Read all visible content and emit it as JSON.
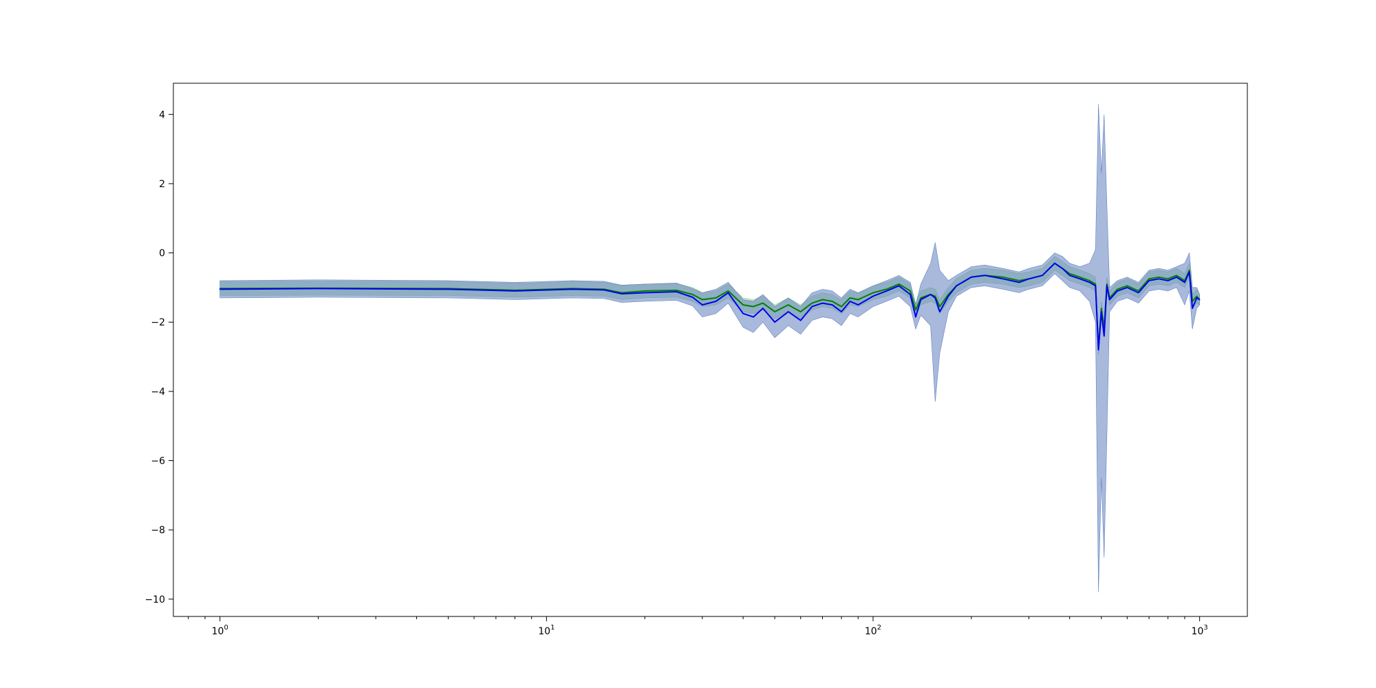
{
  "chart_data": {
    "type": "line",
    "title": "",
    "xlabel": "",
    "ylabel": "",
    "xscale": "log",
    "xlim": [
      0.72,
      1400
    ],
    "ylim": [
      -10.5,
      4.9
    ],
    "grid": false,
    "legend": "none",
    "x_ticks": [
      {
        "value": 1,
        "base": "10",
        "exp": "0"
      },
      {
        "value": 10,
        "base": "10",
        "exp": "1"
      },
      {
        "value": 100,
        "base": "10",
        "exp": "2"
      },
      {
        "value": 1000,
        "base": "10",
        "exp": "3"
      }
    ],
    "y_ticks": [
      {
        "value": 4,
        "label": "4"
      },
      {
        "value": 2,
        "label": "2"
      },
      {
        "value": 0,
        "label": "0"
      },
      {
        "value": -2,
        "label": "−2"
      },
      {
        "value": -4,
        "label": "−4"
      },
      {
        "value": -6,
        "label": "−6"
      },
      {
        "value": -8,
        "label": "−8"
      },
      {
        "value": -10,
        "label": "−10"
      }
    ],
    "x": [
      1,
      2,
      5,
      8,
      12,
      15,
      17,
      20,
      25,
      28,
      30,
      33,
      36,
      40,
      43,
      46,
      50,
      55,
      60,
      65,
      70,
      75,
      80,
      85,
      90,
      100,
      110,
      120,
      130,
      135,
      140,
      150,
      155,
      160,
      170,
      180,
      200,
      220,
      250,
      280,
      300,
      330,
      360,
      380,
      400,
      430,
      460,
      480,
      490,
      500,
      510,
      520,
      530,
      560,
      600,
      650,
      700,
      750,
      800,
      850,
      900,
      930,
      950,
      980,
      1000
    ],
    "series": [
      {
        "color": "#008000",
        "band_color": "#90d090",
        "values": [
          -1.03,
          -1.02,
          -1.03,
          -1.08,
          -1.03,
          -1.05,
          -1.15,
          -1.1,
          -1.08,
          -1.2,
          -1.35,
          -1.3,
          -1.1,
          -1.5,
          -1.55,
          -1.45,
          -1.7,
          -1.5,
          -1.7,
          -1.45,
          -1.35,
          -1.4,
          -1.55,
          -1.3,
          -1.35,
          -1.15,
          -1.05,
          -0.9,
          -1.1,
          -1.65,
          -1.3,
          -1.2,
          -1.25,
          -1.55,
          -1.2,
          -0.95,
          -0.7,
          -0.65,
          -0.7,
          -0.8,
          -0.75,
          -0.65,
          -0.3,
          -0.45,
          -0.6,
          -0.7,
          -0.8,
          -0.9,
          -2.75,
          -1.6,
          -2.2,
          -0.9,
          -1.3,
          -1.05,
          -0.95,
          -1.1,
          -0.75,
          -0.7,
          -0.75,
          -0.65,
          -0.8,
          -0.5,
          -1.4,
          -1.25,
          -1.35
        ],
        "lower": [
          -1.23,
          -1.22,
          -1.23,
          -1.28,
          -1.23,
          -1.25,
          -1.35,
          -1.3,
          -1.28,
          -1.4,
          -1.55,
          -1.5,
          -1.3,
          -1.7,
          -1.75,
          -1.65,
          -1.9,
          -1.7,
          -1.9,
          -1.65,
          -1.55,
          -1.6,
          -1.75,
          -1.5,
          -1.55,
          -1.35,
          -1.25,
          -1.1,
          -1.3,
          -1.85,
          -1.5,
          -1.4,
          -1.45,
          -1.75,
          -1.4,
          -1.15,
          -0.9,
          -0.85,
          -0.9,
          -1.0,
          -0.95,
          -0.85,
          -0.5,
          -0.65,
          -0.8,
          -0.9,
          -1.0,
          -1.1,
          -2.95,
          -1.8,
          -2.4,
          -1.1,
          -1.5,
          -1.25,
          -1.15,
          -1.3,
          -0.95,
          -0.9,
          -0.95,
          -0.85,
          -1.0,
          -0.7,
          -1.6,
          -1.45,
          -1.5
        ],
        "upper": [
          -0.83,
          -0.82,
          -0.83,
          -0.88,
          -0.83,
          -0.85,
          -0.95,
          -0.9,
          -0.88,
          -1.0,
          -1.15,
          -1.1,
          -0.9,
          -1.3,
          -1.35,
          -1.25,
          -1.5,
          -1.3,
          -1.5,
          -1.25,
          -1.15,
          -1.2,
          -1.35,
          -1.1,
          -1.15,
          -0.95,
          -0.85,
          -0.7,
          -0.9,
          -1.45,
          -1.1,
          -1.0,
          -1.05,
          -1.35,
          -1.0,
          -0.75,
          -0.5,
          -0.45,
          -0.5,
          -0.6,
          -0.55,
          -0.45,
          -0.1,
          -0.25,
          -0.4,
          -0.5,
          -0.6,
          -0.7,
          -2.55,
          -1.4,
          -2.0,
          -0.7,
          -1.1,
          -0.85,
          -0.75,
          -0.9,
          -0.55,
          -0.5,
          -0.55,
          -0.45,
          -0.6,
          -0.3,
          -1.2,
          -1.05,
          -1.2
        ]
      },
      {
        "color": "#0000ee",
        "band_color": "#6080c0",
        "values": [
          -1.05,
          -1.03,
          -1.05,
          -1.1,
          -1.05,
          -1.07,
          -1.18,
          -1.15,
          -1.12,
          -1.28,
          -1.5,
          -1.4,
          -1.15,
          -1.75,
          -1.85,
          -1.6,
          -2.0,
          -1.7,
          -1.95,
          -1.55,
          -1.45,
          -1.5,
          -1.7,
          -1.4,
          -1.5,
          -1.25,
          -1.1,
          -0.95,
          -1.2,
          -1.85,
          -1.35,
          -1.2,
          -1.3,
          -1.7,
          -1.25,
          -0.95,
          -0.7,
          -0.65,
          -0.75,
          -0.85,
          -0.75,
          -0.65,
          -0.3,
          -0.45,
          -0.65,
          -0.75,
          -0.85,
          -0.95,
          -2.8,
          -1.7,
          -2.4,
          -0.95,
          -1.35,
          -1.1,
          -1.0,
          -1.15,
          -0.8,
          -0.75,
          -0.8,
          -0.7,
          -0.85,
          -0.55,
          -1.6,
          -1.3,
          -1.35
        ],
        "lower": [
          -1.3,
          -1.28,
          -1.3,
          -1.35,
          -1.3,
          -1.32,
          -1.43,
          -1.4,
          -1.37,
          -1.53,
          -1.85,
          -1.75,
          -1.45,
          -2.15,
          -2.3,
          -2.0,
          -2.45,
          -2.1,
          -2.35,
          -1.95,
          -1.85,
          -1.9,
          -2.1,
          -1.75,
          -1.85,
          -1.55,
          -1.4,
          -1.25,
          -1.55,
          -2.2,
          -1.8,
          -2.1,
          -4.3,
          -2.9,
          -1.7,
          -1.25,
          -1.0,
          -0.95,
          -1.05,
          -1.15,
          -1.05,
          -0.95,
          -0.6,
          -0.8,
          -1.0,
          -1.1,
          -1.4,
          -2.0,
          -9.8,
          -6.5,
          -8.8,
          -5.3,
          -1.7,
          -1.4,
          -1.3,
          -1.45,
          -1.1,
          -1.05,
          -1.1,
          -1.0,
          -1.5,
          -1.1,
          -2.2,
          -1.6,
          -1.5
        ],
        "upper": [
          -0.8,
          -0.78,
          -0.8,
          -0.85,
          -0.8,
          -0.82,
          -0.93,
          -0.9,
          -0.87,
          -1.03,
          -1.15,
          -1.05,
          -0.85,
          -1.35,
          -1.4,
          -1.2,
          -1.55,
          -1.3,
          -1.55,
          -1.15,
          -1.05,
          -1.1,
          -1.3,
          -1.05,
          -1.15,
          -0.95,
          -0.8,
          -0.65,
          -0.85,
          -1.5,
          -0.9,
          -0.3,
          0.3,
          -0.5,
          -0.8,
          -0.65,
          -0.4,
          -0.35,
          -0.45,
          -0.55,
          -0.45,
          -0.35,
          0.0,
          -0.1,
          -0.3,
          -0.4,
          -0.3,
          0.1,
          4.3,
          2.3,
          4.0,
          1.4,
          -1.0,
          -0.8,
          -0.7,
          -0.85,
          -0.5,
          -0.45,
          -0.5,
          -0.4,
          -0.3,
          0.0,
          -1.0,
          -1.0,
          -1.2
        ]
      }
    ]
  }
}
